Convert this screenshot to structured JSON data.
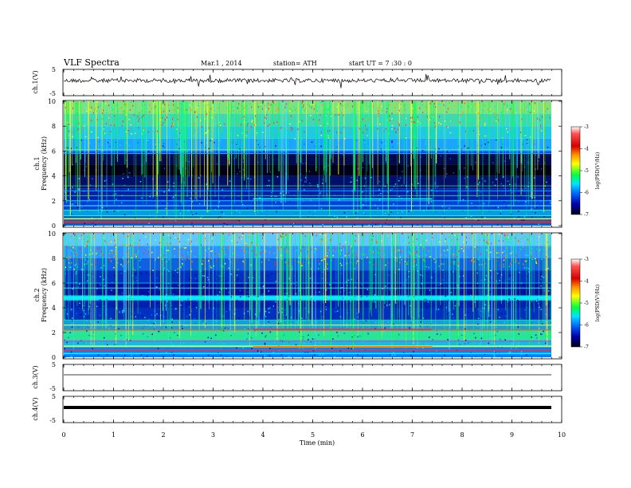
{
  "header": {
    "title": "VLF  Spectra",
    "date": "Mar.1  , 2014",
    "station": "station= ATH",
    "start": "start  UT  =   7  :30 : 0"
  },
  "xaxis": {
    "label": "Time  (min)",
    "range": [
      0,
      10
    ],
    "ticks": [
      "0",
      "1",
      "2",
      "3",
      "4",
      "5",
      "6",
      "7",
      "8",
      "9",
      "10"
    ]
  },
  "panels": {
    "ch1_wave": {
      "ylabel": "ch.1(V)",
      "ticks": [
        "5",
        "-5"
      ]
    },
    "ch1_spec": {
      "ylabel1": "ch.1",
      "ylabel2": "Frequency  (kHz)",
      "ticks": [
        "0",
        "2",
        "4",
        "6",
        "8",
        "10"
      ]
    },
    "ch2_spec": {
      "ylabel1": "ch.2",
      "ylabel2": "Frequency  (kHz)",
      "ticks": [
        "0",
        "2",
        "4",
        "6",
        "8",
        "10"
      ]
    },
    "ch3_wave": {
      "ylabel": "ch.3(V)",
      "ticks": [
        "5",
        "-5"
      ]
    },
    "ch4_wave": {
      "ylabel": "ch.4(V)",
      "ticks": [
        "5",
        "-5"
      ]
    }
  },
  "colorbar": {
    "label": "log(PSD(V²/Hz)",
    "ticks": [
      "-3",
      "-4",
      "-5",
      "-6",
      "-7"
    ],
    "colors": [
      "#ffffff",
      "#ff4040",
      "#d40000",
      "#ff8c00",
      "#ffff00",
      "#00ff00",
      "#00e5ff",
      "#0080ff",
      "#0000c0",
      "#000010"
    ]
  },
  "chart_data": {
    "type": "heatmap",
    "x": {
      "label": "Time  (min)",
      "range": [
        0,
        9.8
      ]
    },
    "spectrograms": [
      {
        "channel": "ch.1",
        "y_range_kHz": [
          0,
          10
        ],
        "zrange_logPSD": [
          -7,
          -3
        ]
      },
      {
        "channel": "ch.2",
        "y_range_kHz": [
          0,
          10
        ],
        "zrange_logPSD": [
          -7,
          -3
        ]
      }
    ],
    "waveforms": [
      {
        "channel": "ch.1",
        "y_range_V": [
          -5,
          5
        ]
      },
      {
        "channel": "ch.3",
        "y_range_V": [
          -5,
          5
        ]
      },
      {
        "channel": "ch.4",
        "y_range_V": [
          -5,
          5
        ]
      }
    ]
  }
}
